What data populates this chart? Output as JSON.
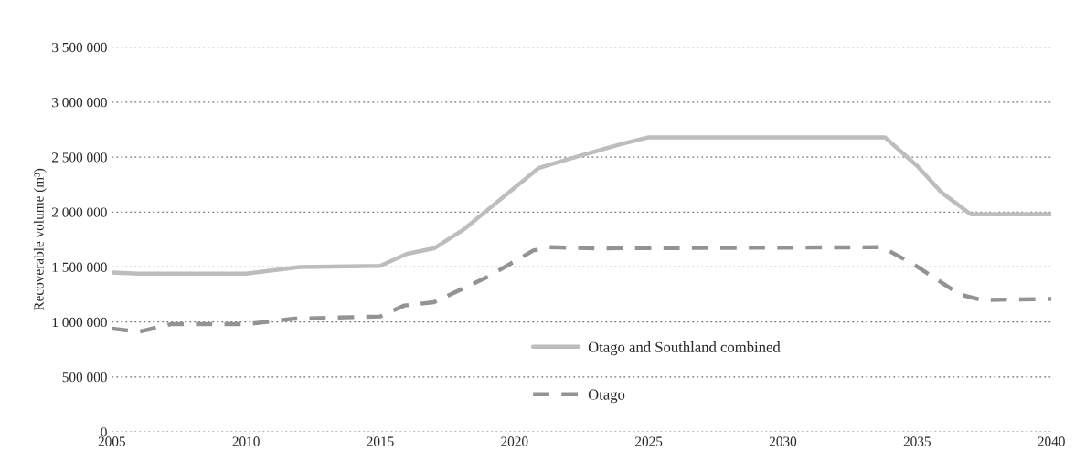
{
  "chart_data": {
    "type": "line",
    "ylabel": "Recoverable volume (m³)",
    "xlim": [
      2005,
      2040
    ],
    "xticks": [
      2005,
      2010,
      2015,
      2020,
      2025,
      2030,
      2035,
      2040
    ],
    "ylim": [
      0,
      3500000
    ],
    "yticks": [
      {
        "value": 0,
        "label": "0"
      },
      {
        "value": 500000,
        "label": "500 000"
      },
      {
        "value": 1000000,
        "label": "1 000 000"
      },
      {
        "value": 1500000,
        "label": "1 500 000"
      },
      {
        "value": 2000000,
        "label": "2 000 000"
      },
      {
        "value": 2500000,
        "label": "2 500 000"
      },
      {
        "value": 3000000,
        "label": "3 000 000"
      },
      {
        "value": 3500000,
        "label": "3 500 000"
      }
    ],
    "grid": "y",
    "legend": "bottom",
    "marker": "none",
    "series": [
      {
        "name": "Otago and Southland combined",
        "color": "#bdbdbd",
        "line_style": "solid",
        "x": [
          2005,
          2006,
          2010,
          2012,
          2015,
          2016,
          2017,
          2018.1,
          2019,
          2020,
          2020.9,
          2022,
          2024,
          2025,
          2033.8,
          2035,
          2035.9,
          2037,
          2040
        ],
        "values": [
          1450000,
          1440000,
          1440000,
          1500000,
          1510000,
          1620000,
          1670000,
          1840000,
          2020000,
          2220000,
          2400000,
          2480000,
          2620000,
          2680000,
          2680000,
          2420000,
          2180000,
          1980000,
          1980000
        ]
      },
      {
        "name": "Otago",
        "color": "#939393",
        "line_style": "dashed",
        "x": [
          2005,
          2006,
          2007.2,
          2010,
          2011.8,
          2015,
          2015.9,
          2017,
          2019,
          2020.7,
          2021.3,
          2023.1,
          2033.7,
          2034.9,
          2036.6,
          2037.4,
          2040
        ],
        "values": [
          940000,
          910000,
          980000,
          980000,
          1030000,
          1050000,
          1150000,
          1180000,
          1410000,
          1650000,
          1680000,
          1670000,
          1680000,
          1520000,
          1250000,
          1200000,
          1210000
        ]
      }
    ]
  }
}
